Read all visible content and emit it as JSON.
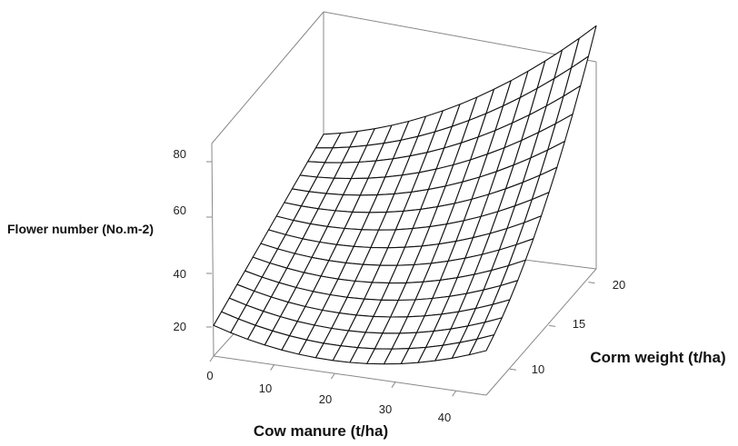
{
  "chart_data": {
    "type": "surface",
    "title": "",
    "xlabel": "Cow manure (t/ha)",
    "ylabel": "Corm weight (t/ha)",
    "zlabel": "Flower number (No.m-2)",
    "x_ticks": [
      "0",
      "10",
      "20",
      "30",
      "40"
    ],
    "y_ticks": [
      "10",
      "15",
      "20"
    ],
    "z_ticks": [
      "20",
      "40",
      "60",
      "80"
    ],
    "xlim": [
      0,
      45
    ],
    "ylim": [
      7,
      21
    ],
    "zlim": [
      10,
      90
    ],
    "grid_resolution": {
      "x_lines": 17,
      "y_lines": 15
    },
    "surface_samples": [
      {
        "x": 0,
        "y": 7,
        "z": 21
      },
      {
        "x": 15,
        "y": 7,
        "z": 14
      },
      {
        "x": 45,
        "y": 7,
        "z": 19
      },
      {
        "x": 0,
        "y": 21,
        "z": 47
      },
      {
        "x": 15,
        "y": 21,
        "z": 71
      },
      {
        "x": 45,
        "y": 21,
        "z": 86
      }
    ]
  }
}
